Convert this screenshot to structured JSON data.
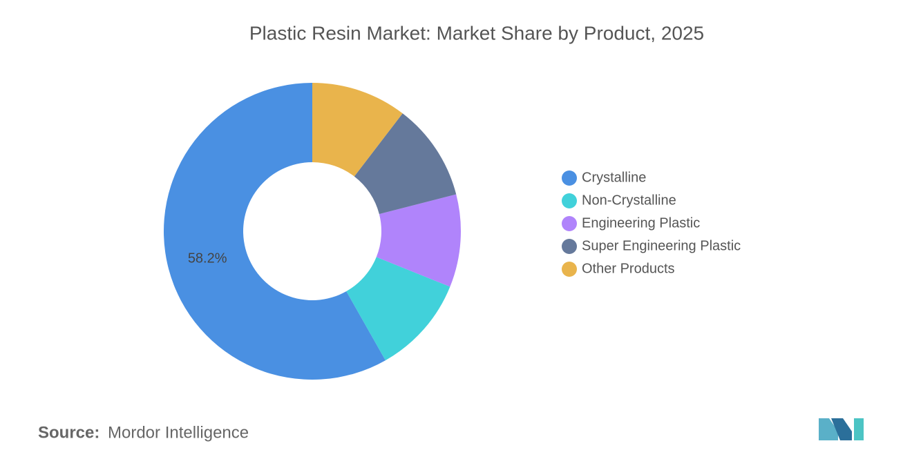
{
  "chart_data": {
    "type": "donut",
    "title": "Plastic Resin Market: Market Share by Product, 2025",
    "categories": [
      "Crystalline",
      "Non-Crystalline",
      "Engineering Plastic",
      "Super Engineering Plastic",
      "Other Products"
    ],
    "values": [
      58.2,
      10.7,
      10.1,
      10.6,
      10.4
    ],
    "value_labels": [
      "58.2%",
      null,
      null,
      null,
      null
    ],
    "colors": [
      "#4a90e2",
      "#41d1da",
      "#b084fb",
      "#65799b",
      "#e9b44c"
    ],
    "legend": "right",
    "source_label": "Source:",
    "source": "Mordor Intelligence"
  }
}
